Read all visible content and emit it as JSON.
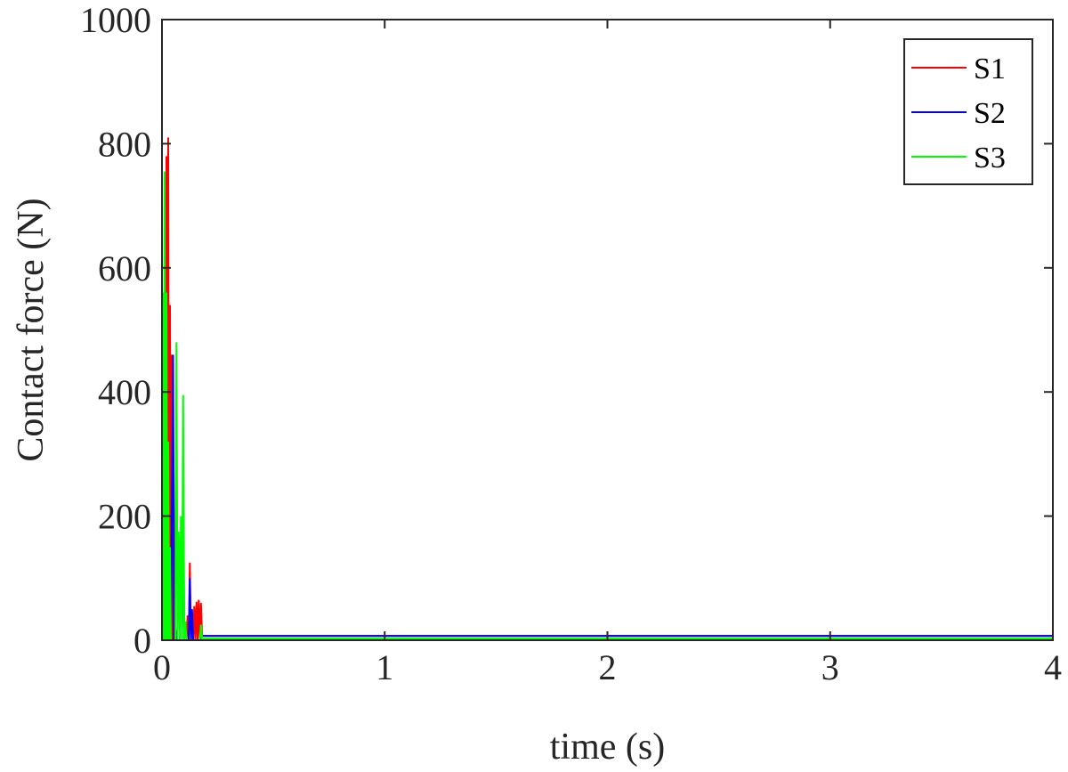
{
  "chart_data": {
    "type": "line",
    "title": "",
    "xlabel": "time (s)",
    "ylabel": "Contact force (N)",
    "xlim": [
      0,
      4
    ],
    "ylim": [
      0,
      1000
    ],
    "xticks": [
      0,
      1,
      2,
      3,
      4
    ],
    "yticks": [
      0,
      200,
      400,
      600,
      800,
      1000
    ],
    "grid": false,
    "legend_position": "top-right",
    "series": [
      {
        "name": "S1",
        "color": "#ff0000",
        "x": [
          0,
          0.002,
          0.004,
          0.006,
          0.008,
          0.012,
          0.016,
          0.02,
          0.024,
          0.028,
          0.032,
          0.036,
          0.04,
          0.044,
          0.048,
          0.052,
          0.056,
          0.06,
          0.07,
          0.08,
          0.09,
          0.1,
          0.11,
          0.115,
          0.12,
          0.125,
          0.13,
          0.135,
          0.14,
          0.145,
          0.15,
          0.155,
          0.16,
          0.165,
          0.17,
          0.175,
          0.18,
          0.2,
          0.5,
          1,
          2,
          3,
          4
        ],
        "y": [
          0,
          350,
          0,
          515,
          0,
          520,
          0,
          780,
          0,
          810,
          0,
          540,
          0,
          460,
          0,
          300,
          0,
          0,
          0,
          0,
          0,
          0,
          0,
          40,
          0,
          125,
          0,
          30,
          0,
          55,
          0,
          62,
          0,
          65,
          0,
          60,
          7,
          7,
          7,
          7,
          7,
          7,
          7
        ]
      },
      {
        "name": "S2",
        "color": "#0000ff",
        "x": [
          0,
          0.004,
          0.008,
          0.012,
          0.016,
          0.02,
          0.03,
          0.04,
          0.05,
          0.055,
          0.06,
          0.065,
          0.07,
          0.075,
          0.08,
          0.09,
          0.095,
          0.1,
          0.11,
          0.12,
          0.125,
          0.13,
          0.135,
          0.14,
          0.145,
          0.15,
          0.16,
          0.17,
          0.18,
          0.2,
          0.5,
          1,
          2,
          3,
          4
        ],
        "y": [
          0,
          260,
          0,
          180,
          0,
          0,
          0,
          0,
          460,
          0,
          20,
          0,
          0,
          0,
          0,
          0,
          275,
          0,
          0,
          0,
          100,
          0,
          50,
          0,
          0,
          0,
          0,
          0,
          7,
          7,
          7,
          7,
          7,
          7,
          7
        ]
      },
      {
        "name": "S3",
        "color": "#00ff00",
        "x": [
          0,
          0.004,
          0.008,
          0.012,
          0.016,
          0.02,
          0.024,
          0.028,
          0.032,
          0.036,
          0.04,
          0.05,
          0.06,
          0.065,
          0.07,
          0.075,
          0.08,
          0.085,
          0.09,
          0.095,
          0.1,
          0.105,
          0.11,
          0.12,
          0.14,
          0.16,
          0.17,
          0.175,
          0.18,
          0.2,
          0.5,
          1,
          2,
          3,
          4
        ],
        "y": [
          0,
          560,
          0,
          755,
          0,
          560,
          0,
          320,
          0,
          150,
          0,
          0,
          0,
          480,
          0,
          175,
          0,
          200,
          0,
          395,
          0,
          30,
          0,
          0,
          0,
          0,
          0,
          25,
          3,
          3,
          3,
          3,
          3,
          3,
          3
        ]
      }
    ]
  }
}
